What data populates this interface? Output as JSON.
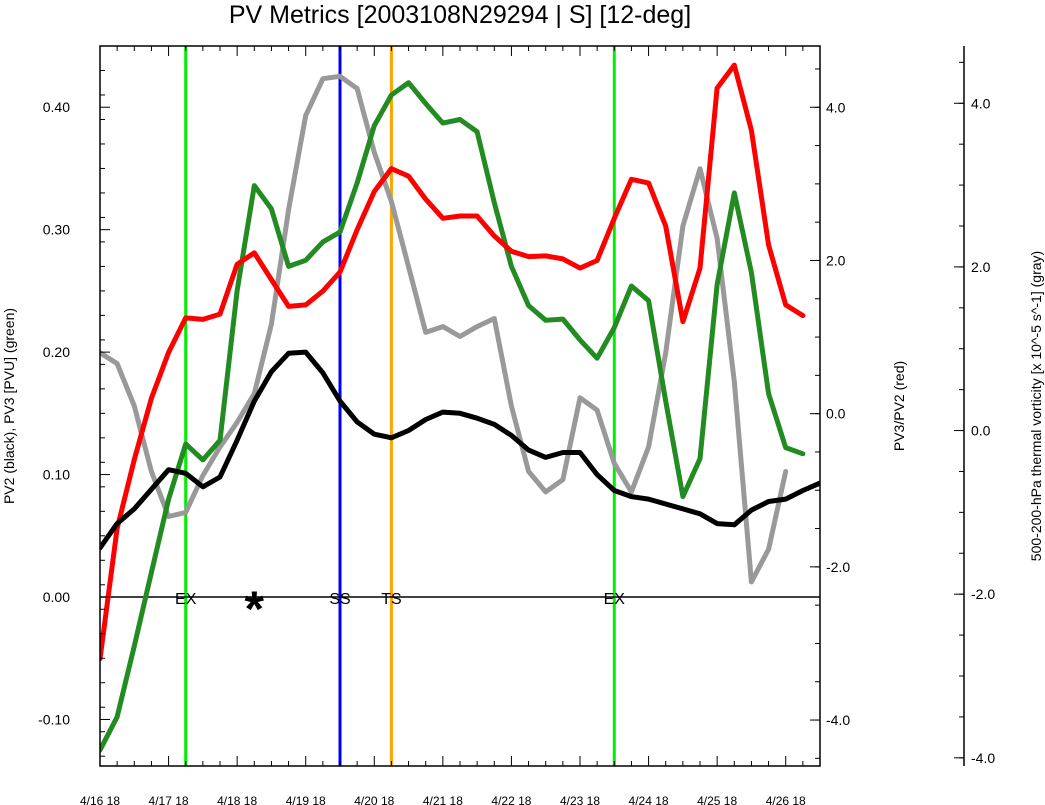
{
  "chart_data": {
    "type": "line",
    "title": "PV Metrics [2003108N29294 | S] [12-deg]",
    "xlabel": "",
    "x_tick_labels": [
      "4/16 18",
      "4/17 18",
      "4/18 18",
      "4/19 18",
      "4/20 18",
      "4/21 18",
      "4/22 18",
      "4/23 18",
      "4/24 18",
      "4/25 18",
      "4/26 18"
    ],
    "xlim": [
      0,
      252
    ],
    "axes": {
      "left": {
        "label": "PV2 (black), PV3 [PVU] (green)",
        "ylim": [
          -0.138,
          0.45
        ],
        "ticks": [
          "-0.10",
          "0.00",
          "0.10",
          "0.20",
          "0.30",
          "0.40"
        ],
        "tick_values": [
          -0.1,
          0.0,
          0.1,
          0.2,
          0.3,
          0.4
        ]
      },
      "right": {
        "label": "PV3/PV2 (red)",
        "ylim": [
          -4.6,
          4.8
        ],
        "ticks": [
          "-4.0",
          "-2.0",
          "0.0",
          "2.0",
          "4.0"
        ],
        "tick_values": [
          -4.0,
          -2.0,
          0.0,
          2.0,
          4.0
        ]
      },
      "far_right": {
        "label": "500-200-hPa thermal vorticity [x 10^-5 s^-1] (gray)",
        "ylim": [
          -4.1,
          4.7
        ],
        "ticks": [
          "-4.0",
          "-2.0",
          "0.0",
          "2.0",
          "4.0"
        ],
        "tick_values": [
          -4.0,
          -2.0,
          0.0,
          2.0,
          4.0
        ]
      }
    },
    "series": [
      {
        "axis": "far_right",
        "color": "#999999",
        "x": [
          0,
          6,
          12,
          18,
          24,
          30,
          36,
          42,
          48,
          54,
          60,
          66,
          72,
          78,
          84,
          90,
          96,
          102,
          108,
          114,
          120,
          126,
          132,
          138,
          144,
          150,
          156,
          162,
          168,
          174,
          180,
          186,
          192,
          198,
          204,
          210,
          216,
          222,
          228,
          234,
          240,
          246,
          252
        ],
        "values": [
          0.95,
          0.82,
          0.3,
          -0.5,
          -1.05,
          -1.0,
          -0.55,
          -0.2,
          0.1,
          0.45,
          1.3,
          2.7,
          3.85,
          4.3,
          4.33,
          4.18,
          3.4,
          2.8,
          2.0,
          1.2,
          1.27,
          1.15,
          1.27,
          1.37,
          0.3,
          -0.5,
          -0.75,
          -0.6,
          0.4,
          0.25,
          -0.4,
          -0.75,
          -0.2,
          0.95,
          2.5,
          3.2,
          2.35,
          0.6,
          -1.85,
          -1.45,
          -0.5,
          null,
          null
        ]
      },
      {
        "axis": "left",
        "color": "#228b22",
        "x": [
          0,
          6,
          12,
          18,
          24,
          30,
          36,
          42,
          48,
          54,
          60,
          66,
          72,
          78,
          84,
          90,
          96,
          102,
          108,
          114,
          120,
          126,
          132,
          138,
          144,
          150,
          156,
          162,
          168,
          174,
          180,
          186,
          192,
          198,
          204,
          210,
          216,
          222,
          228,
          234,
          240,
          246,
          252
        ],
        "values": [
          -0.125,
          -0.098,
          -0.04,
          0.02,
          0.08,
          0.125,
          0.112,
          0.128,
          0.25,
          0.336,
          0.317,
          0.27,
          0.275,
          0.29,
          0.298,
          0.338,
          0.385,
          0.41,
          0.42,
          0.403,
          0.387,
          0.39,
          0.38,
          0.322,
          0.27,
          0.238,
          0.226,
          0.227,
          0.21,
          0.195,
          0.22,
          0.254,
          0.242,
          0.16,
          0.082,
          0.113,
          0.255,
          0.33,
          0.265,
          0.166,
          0.122,
          0.117,
          null
        ]
      },
      {
        "axis": "right",
        "color": "#ff0000",
        "x": [
          0,
          6,
          12,
          18,
          24,
          30,
          36,
          42,
          48,
          54,
          60,
          66,
          72,
          78,
          84,
          90,
          96,
          102,
          108,
          114,
          120,
          126,
          132,
          138,
          144,
          150,
          156,
          162,
          168,
          174,
          180,
          186,
          192,
          198,
          204,
          210,
          216,
          222,
          228,
          234,
          240,
          246,
          252
        ],
        "values": [
          -3.2,
          -1.5,
          -0.6,
          0.2,
          0.8,
          1.25,
          1.23,
          1.3,
          1.95,
          2.1,
          1.75,
          1.4,
          1.42,
          1.6,
          1.85,
          2.4,
          2.9,
          3.2,
          3.1,
          2.8,
          2.55,
          2.58,
          2.58,
          2.32,
          2.12,
          2.05,
          2.06,
          2.02,
          1.9,
          2.0,
          2.55,
          3.06,
          3.01,
          2.45,
          1.2,
          1.9,
          4.25,
          4.55,
          3.7,
          2.2,
          1.42,
          1.28,
          null
        ]
      },
      {
        "axis": "left",
        "color": "#000000",
        "x": [
          0,
          6,
          12,
          18,
          24,
          30,
          36,
          42,
          48,
          54,
          60,
          66,
          72,
          78,
          84,
          90,
          96,
          102,
          108,
          114,
          120,
          126,
          132,
          138,
          144,
          150,
          156,
          162,
          168,
          174,
          180,
          186,
          192,
          198,
          204,
          210,
          216,
          222,
          228,
          234,
          240,
          246,
          252
        ],
        "values": [
          0.04,
          0.06,
          0.072,
          0.088,
          0.104,
          0.101,
          0.09,
          0.098,
          0.128,
          0.16,
          0.184,
          0.199,
          0.2,
          0.183,
          0.16,
          0.143,
          0.133,
          0.13,
          0.136,
          0.145,
          0.151,
          0.15,
          0.146,
          0.141,
          0.132,
          0.12,
          0.114,
          0.118,
          0.118,
          0.1,
          0.087,
          0.082,
          0.08,
          0.076,
          0.072,
          0.068,
          0.06,
          0.059,
          0.071,
          0.078,
          0.08,
          0.087,
          0.093
        ]
      }
    ],
    "vertical_lines": [
      {
        "x": 30,
        "color": "#00ee00"
      },
      {
        "x": 84,
        "color": "#0000ff"
      },
      {
        "x": 102,
        "color": "#ffa500"
      },
      {
        "x": 180,
        "color": "#00ee00"
      }
    ],
    "zero_line": 0.0,
    "annotations": [
      {
        "text": "EX",
        "x": 30,
        "y": 0.0
      },
      {
        "text": "*",
        "x": 54,
        "y": 0.0
      },
      {
        "text": "SS",
        "x": 84,
        "y": 0.0
      },
      {
        "text": "TS",
        "x": 102,
        "y": 0.0
      },
      {
        "text": "EX",
        "x": 180,
        "y": 0.0
      }
    ],
    "grid": false,
    "legend": "none"
  }
}
